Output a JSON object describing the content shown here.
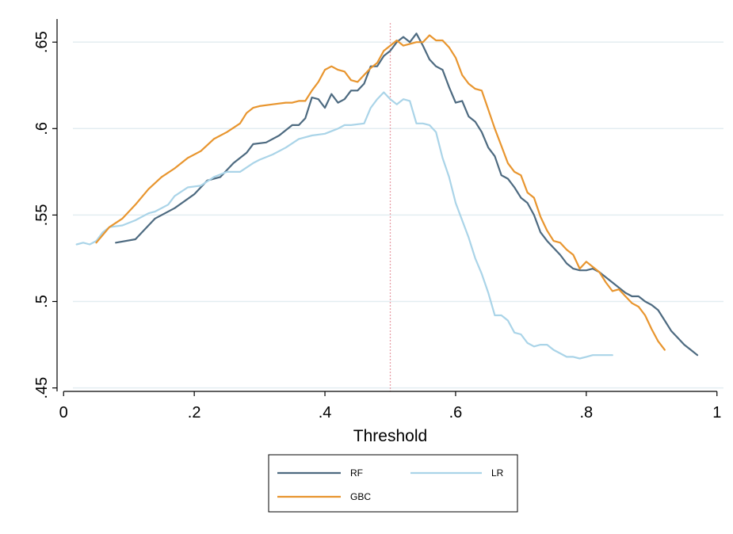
{
  "chart_data": {
    "type": "line",
    "title": "",
    "xlabel": "Threshold",
    "ylabel": "",
    "xlim": [
      -0.01,
      1.01
    ],
    "ylim": [
      0.448,
      0.662
    ],
    "x_ticks": [
      {
        "value": 0,
        "label": "0"
      },
      {
        "value": 0.2,
        "label": ".2"
      },
      {
        "value": 0.4,
        "label": ".4"
      },
      {
        "value": 0.6,
        "label": ".6"
      },
      {
        "value": 0.8,
        "label": ".8"
      },
      {
        "value": 1,
        "label": "1"
      }
    ],
    "y_ticks": [
      {
        "value": 0.45,
        "label": ".45"
      },
      {
        "value": 0.5,
        "label": ".5"
      },
      {
        "value": 0.55,
        "label": ".55"
      },
      {
        "value": 0.6,
        "label": ".6"
      },
      {
        "value": 0.65,
        "label": ".65"
      }
    ],
    "grid": "horizontal",
    "reference_line": {
      "x": 0.5,
      "color": "#e8a0a8",
      "style": "dotted"
    },
    "legend_position": "bottom",
    "series": [
      {
        "name": "RF",
        "color": "#4d6a80",
        "x": [
          0.08,
          0.11,
          0.14,
          0.17,
          0.2,
          0.22,
          0.24,
          0.26,
          0.28,
          0.29,
          0.31,
          0.33,
          0.35,
          0.36,
          0.37,
          0.38,
          0.39,
          0.4,
          0.41,
          0.42,
          0.43,
          0.44,
          0.45,
          0.46,
          0.47,
          0.48,
          0.49,
          0.5,
          0.51,
          0.52,
          0.53,
          0.54,
          0.55,
          0.56,
          0.57,
          0.58,
          0.59,
          0.6,
          0.61,
          0.62,
          0.63,
          0.64,
          0.65,
          0.66,
          0.67,
          0.68,
          0.69,
          0.7,
          0.71,
          0.72,
          0.73,
          0.74,
          0.75,
          0.76,
          0.77,
          0.78,
          0.79,
          0.8,
          0.81,
          0.82,
          0.83,
          0.84,
          0.85,
          0.86,
          0.87,
          0.88,
          0.89,
          0.9,
          0.91,
          0.92,
          0.93,
          0.94,
          0.95,
          0.96,
          0.97
        ],
        "values": [
          0.534,
          0.536,
          0.548,
          0.554,
          0.562,
          0.57,
          0.572,
          0.58,
          0.586,
          0.591,
          0.592,
          0.596,
          0.602,
          0.602,
          0.606,
          0.618,
          0.617,
          0.612,
          0.62,
          0.615,
          0.617,
          0.622,
          0.622,
          0.626,
          0.636,
          0.636,
          0.642,
          0.645,
          0.65,
          0.653,
          0.65,
          0.655,
          0.648,
          0.64,
          0.636,
          0.634,
          0.624,
          0.615,
          0.616,
          0.607,
          0.604,
          0.598,
          0.589,
          0.584,
          0.573,
          0.571,
          0.566,
          0.56,
          0.557,
          0.55,
          0.54,
          0.535,
          0.531,
          0.527,
          0.522,
          0.519,
          0.518,
          0.518,
          0.519,
          0.517,
          0.514,
          0.511,
          0.508,
          0.505,
          0.503,
          0.503,
          0.5,
          0.498,
          0.495,
          0.489,
          0.483,
          0.479,
          0.475,
          0.472,
          0.469
        ]
      },
      {
        "name": "LR",
        "color": "#aad4e8",
        "x": [
          0.02,
          0.03,
          0.04,
          0.05,
          0.06,
          0.07,
          0.09,
          0.11,
          0.13,
          0.14,
          0.16,
          0.17,
          0.19,
          0.21,
          0.23,
          0.25,
          0.27,
          0.29,
          0.3,
          0.32,
          0.34,
          0.36,
          0.38,
          0.4,
          0.42,
          0.43,
          0.44,
          0.46,
          0.47,
          0.48,
          0.49,
          0.5,
          0.51,
          0.52,
          0.53,
          0.54,
          0.55,
          0.56,
          0.57,
          0.58,
          0.59,
          0.6,
          0.61,
          0.62,
          0.63,
          0.64,
          0.65,
          0.66,
          0.67,
          0.68,
          0.69,
          0.7,
          0.71,
          0.72,
          0.73,
          0.74,
          0.75,
          0.76,
          0.77,
          0.78,
          0.79,
          0.8,
          0.81,
          0.82,
          0.83,
          0.84
        ],
        "values": [
          0.533,
          0.534,
          0.533,
          0.535,
          0.54,
          0.543,
          0.544,
          0.547,
          0.551,
          0.552,
          0.556,
          0.561,
          0.566,
          0.567,
          0.572,
          0.575,
          0.575,
          0.58,
          0.582,
          0.585,
          0.589,
          0.594,
          0.596,
          0.597,
          0.6,
          0.602,
          0.602,
          0.603,
          0.612,
          0.617,
          0.621,
          0.617,
          0.614,
          0.617,
          0.616,
          0.603,
          0.603,
          0.602,
          0.598,
          0.583,
          0.572,
          0.557,
          0.547,
          0.537,
          0.525,
          0.516,
          0.505,
          0.492,
          0.492,
          0.489,
          0.482,
          0.481,
          0.476,
          0.474,
          0.475,
          0.475,
          0.472,
          0.47,
          0.468,
          0.468,
          0.467,
          0.468,
          0.469,
          0.469,
          0.469,
          0.469
        ]
      },
      {
        "name": "GBC",
        "color": "#e8952e",
        "x": [
          0.05,
          0.07,
          0.09,
          0.11,
          0.13,
          0.15,
          0.17,
          0.19,
          0.21,
          0.23,
          0.25,
          0.27,
          0.28,
          0.29,
          0.3,
          0.32,
          0.34,
          0.35,
          0.36,
          0.37,
          0.38,
          0.39,
          0.4,
          0.41,
          0.42,
          0.43,
          0.44,
          0.45,
          0.46,
          0.47,
          0.48,
          0.49,
          0.5,
          0.51,
          0.52,
          0.53,
          0.54,
          0.55,
          0.56,
          0.57,
          0.58,
          0.59,
          0.6,
          0.61,
          0.62,
          0.63,
          0.64,
          0.65,
          0.66,
          0.67,
          0.68,
          0.69,
          0.7,
          0.71,
          0.72,
          0.73,
          0.74,
          0.75,
          0.76,
          0.77,
          0.78,
          0.79,
          0.8,
          0.81,
          0.82,
          0.83,
          0.84,
          0.85,
          0.86,
          0.87,
          0.88,
          0.89,
          0.9,
          0.91,
          0.92
        ],
        "values": [
          0.534,
          0.543,
          0.548,
          0.556,
          0.565,
          0.572,
          0.577,
          0.583,
          0.587,
          0.594,
          0.598,
          0.603,
          0.609,
          0.612,
          0.613,
          0.614,
          0.615,
          0.615,
          0.616,
          0.616,
          0.622,
          0.627,
          0.634,
          0.636,
          0.634,
          0.633,
          0.628,
          0.627,
          0.631,
          0.635,
          0.638,
          0.645,
          0.648,
          0.651,
          0.648,
          0.649,
          0.65,
          0.65,
          0.654,
          0.651,
          0.651,
          0.647,
          0.641,
          0.631,
          0.626,
          0.623,
          0.622,
          0.611,
          0.6,
          0.59,
          0.58,
          0.575,
          0.573,
          0.563,
          0.56,
          0.549,
          0.541,
          0.535,
          0.534,
          0.53,
          0.527,
          0.519,
          0.523,
          0.52,
          0.517,
          0.511,
          0.506,
          0.507,
          0.503,
          0.499,
          0.497,
          0.492,
          0.484,
          0.477,
          0.472
        ]
      }
    ]
  },
  "legend": {
    "items": [
      {
        "name": "RF"
      },
      {
        "name": "LR"
      },
      {
        "name": "GBC"
      }
    ]
  }
}
